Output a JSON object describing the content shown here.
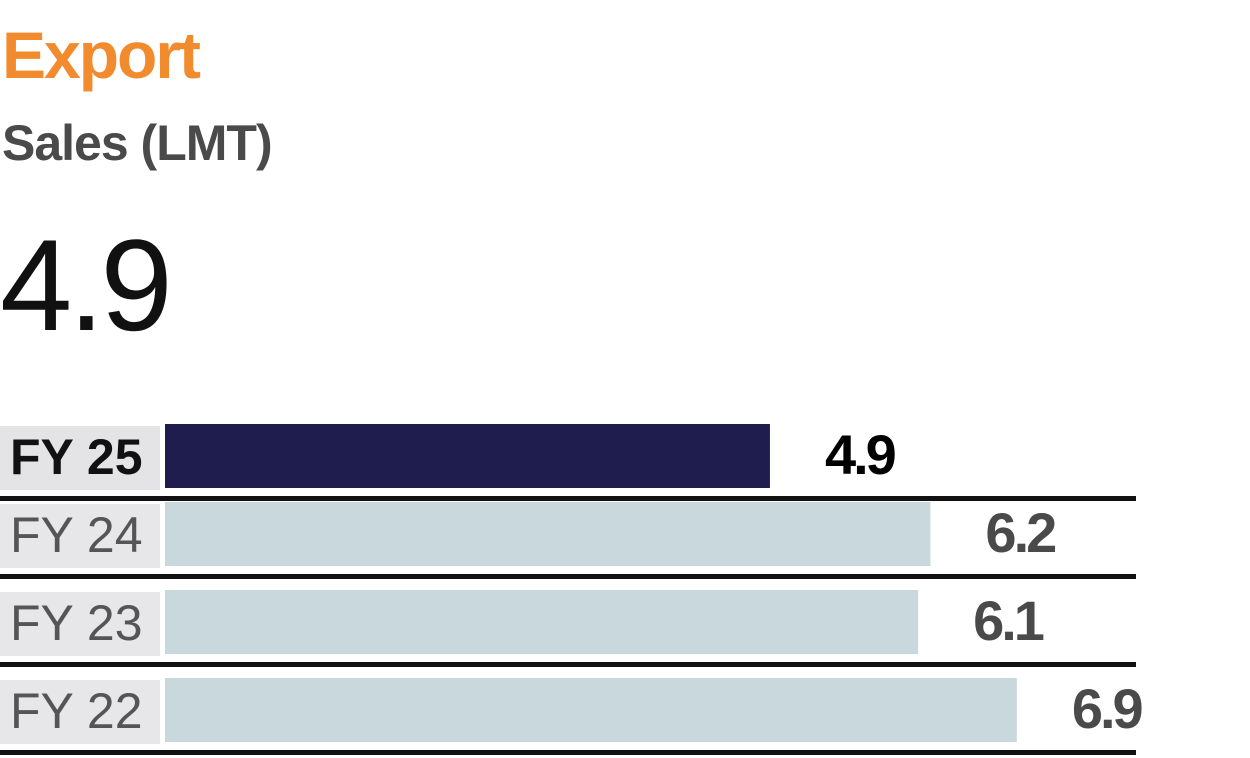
{
  "header": {
    "title": "Export",
    "subtitle": "Sales (LMT)",
    "headline_value": "4.9"
  },
  "colors": {
    "title": "#f28a2e",
    "subtitle": "#4a4a4a",
    "highlight_bar": "#1f1d4d",
    "bar": "#c8d8dc",
    "label_bg": "#e7e7e9",
    "divider": "#111111"
  },
  "chart_data": {
    "type": "bar",
    "orientation": "horizontal",
    "categories": [
      "FY 25",
      "FY 24",
      "FY 23",
      "FY 22"
    ],
    "values": [
      4.9,
      6.2,
      6.1,
      6.9
    ],
    "value_labels": [
      "4.9",
      "6.2",
      "6.1",
      "6.9"
    ],
    "highlight": "FY 25",
    "xlim": [
      0,
      8.1
    ]
  }
}
